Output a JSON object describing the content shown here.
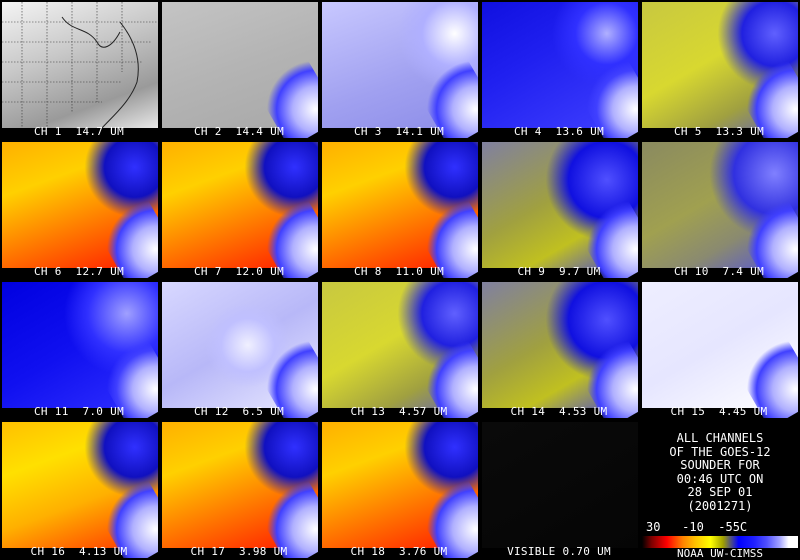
{
  "panels": [
    {
      "caption": "CH 1  14.7 UM",
      "style": "map"
    },
    {
      "caption": "CH 2  14.4 UM",
      "style": "gray"
    },
    {
      "caption": "CH 3  14.1 UM",
      "style": "lightblue"
    },
    {
      "caption": "CH 4  13.6 UM",
      "style": "blue"
    },
    {
      "caption": "CH 5  13.3 UM",
      "style": "olive"
    },
    {
      "caption": "CH 6  12.7 UM",
      "style": "warm"
    },
    {
      "caption": "CH 7  12.0 UM",
      "style": "warm"
    },
    {
      "caption": "CH 8  11.0 UM",
      "style": "warm"
    },
    {
      "caption": "CH 9  9.7 UM",
      "style": "olive2"
    },
    {
      "caption": "CH 10  7.4 UM",
      "style": "olive3"
    },
    {
      "caption": "CH 11  7.0 UM",
      "style": "deepblue"
    },
    {
      "caption": "CH 12  6.5 UM",
      "style": "paleblue"
    },
    {
      "caption": "CH 13  4.57 UM",
      "style": "olive"
    },
    {
      "caption": "CH 14  4.53 UM",
      "style": "olive2"
    },
    {
      "caption": "CH 15  4.45 UM",
      "style": "white"
    },
    {
      "caption": "CH 16  4.13 UM",
      "style": "warm2"
    },
    {
      "caption": "CH 17  3.98 UM",
      "style": "warm"
    },
    {
      "caption": "CH 18  3.76 UM",
      "style": "warm"
    },
    {
      "caption": "VISIBLE 0.70 UM",
      "style": "dark"
    }
  ],
  "info": {
    "lines": [
      "ALL CHANNELS",
      "OF THE GOES-12",
      "SOUNDER FOR",
      "00:46 UTC ON",
      "28 SEP 01",
      "(2001271)"
    ],
    "scale_labels": "30   -10  -55C",
    "credit": "NOAA UW-CIMSS"
  },
  "colors": {
    "background": "#000000",
    "text": "#ffffff"
  }
}
